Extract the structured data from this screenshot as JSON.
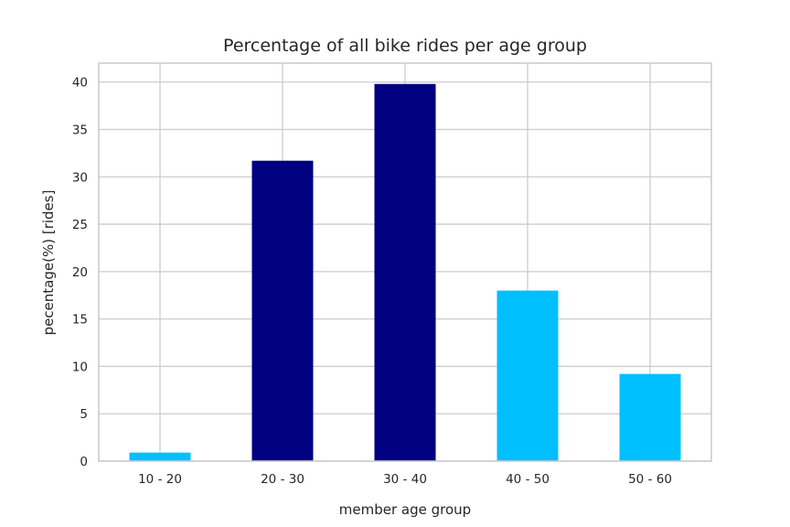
{
  "chart_data": {
    "type": "bar",
    "title": "Percentage of all bike rides per age group",
    "xlabel": "member age group",
    "ylabel": "pecentage(%) [rides]",
    "categories": [
      "10 - 20",
      "20 - 30",
      "30 - 40",
      "40 - 50",
      "50 - 60"
    ],
    "values": [
      0.9,
      31.7,
      39.8,
      18.0,
      9.2
    ],
    "bar_colors": [
      "#00bfff",
      "#000080",
      "#000080",
      "#00bfff",
      "#00bfff"
    ],
    "ylim": [
      0,
      42
    ],
    "yticks": [
      0,
      5,
      10,
      15,
      20,
      25,
      30,
      35,
      40
    ],
    "ytick_labels": [
      "0",
      "5",
      "10",
      "15",
      "20",
      "25",
      "30",
      "35",
      "40"
    ],
    "grid": true,
    "legend": "none"
  }
}
